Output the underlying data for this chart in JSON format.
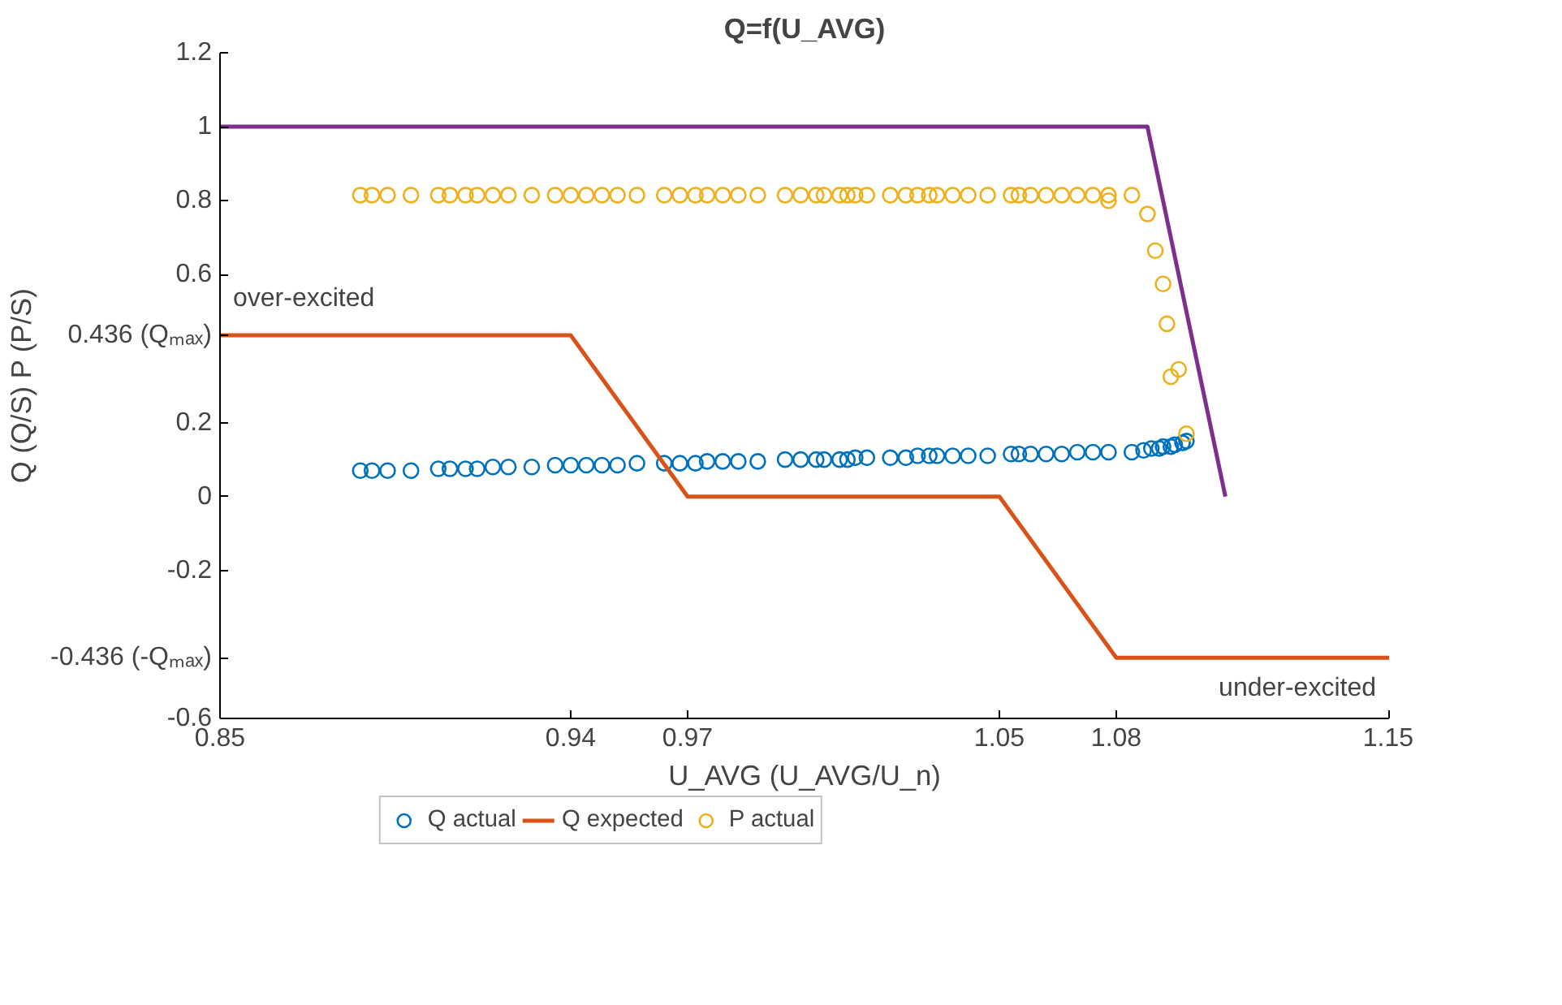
{
  "chart_data": {
    "type": "scatter",
    "title": "Q=f(U_AVG)",
    "xlabel": "U_AVG (U_AVG/U_n)",
    "ylabel": "Q (Q/S) P (P/S)",
    "xlim": [
      0.85,
      1.15
    ],
    "xticks": [
      0.85,
      0.94,
      0.97,
      1.05,
      1.08,
      1.15
    ],
    "ylim": [
      -0.6,
      1.2
    ],
    "yticks": [
      -0.6,
      {
        "value": -0.436,
        "label": "-0.436 (-Qₘₐₓ)"
      },
      -0.2,
      0,
      0.2,
      {
        "value": 0.436,
        "label": "0.436 (Qₘₐₓ)"
      },
      0.6,
      0.8,
      1,
      1.2
    ],
    "grid": false,
    "legend": "bottom",
    "annotations": [
      "over-excited",
      "under-excited"
    ],
    "series": [
      {
        "name": "Q actual",
        "marker": "circle",
        "color": "#0072bd",
        "x": [
          0.886,
          0.889,
          0.893,
          0.899,
          0.906,
          0.909,
          0.913,
          0.916,
          0.92,
          0.924,
          0.93,
          0.936,
          0.94,
          0.944,
          0.948,
          0.952,
          0.957,
          0.964,
          0.968,
          0.972,
          0.975,
          0.979,
          0.983,
          0.988,
          0.995,
          0.999,
          1.003,
          1.005,
          1.009,
          1.011,
          1.013,
          1.016,
          1.022,
          1.026,
          1.029,
          1.032,
          1.034,
          1.038,
          1.042,
          1.047,
          1.053,
          1.055,
          1.058,
          1.062,
          1.066,
          1.07,
          1.074,
          1.078,
          1.084,
          1.087,
          1.089,
          1.091,
          1.092,
          1.094,
          1.095,
          1.097,
          1.098
        ],
        "values": [
          0.07,
          0.07,
          0.07,
          0.07,
          0.075,
          0.075,
          0.075,
          0.075,
          0.08,
          0.08,
          0.08,
          0.085,
          0.085,
          0.085,
          0.085,
          0.085,
          0.09,
          0.09,
          0.09,
          0.09,
          0.095,
          0.095,
          0.095,
          0.095,
          0.1,
          0.1,
          0.1,
          0.1,
          0.1,
          0.1,
          0.105,
          0.105,
          0.105,
          0.105,
          0.11,
          0.11,
          0.11,
          0.11,
          0.11,
          0.11,
          0.115,
          0.115,
          0.115,
          0.115,
          0.115,
          0.12,
          0.12,
          0.12,
          0.12,
          0.125,
          0.13,
          0.13,
          0.135,
          0.135,
          0.14,
          0.145,
          0.15
        ]
      },
      {
        "name": "Q expected",
        "type": "line",
        "color": "#d95319",
        "x": [
          0.85,
          0.94,
          0.97,
          1.05,
          1.08,
          1.15
        ],
        "values": [
          0.436,
          0.436,
          0,
          0,
          -0.436,
          -0.436
        ]
      },
      {
        "name": "P actual",
        "marker": "circle",
        "color": "#edb120",
        "x": [
          0.886,
          0.889,
          0.893,
          0.899,
          0.906,
          0.909,
          0.913,
          0.916,
          0.92,
          0.924,
          0.93,
          0.936,
          0.94,
          0.944,
          0.948,
          0.952,
          0.957,
          0.964,
          0.968,
          0.972,
          0.975,
          0.979,
          0.983,
          0.988,
          0.995,
          0.999,
          1.003,
          1.005,
          1.009,
          1.011,
          1.013,
          1.016,
          1.022,
          1.026,
          1.029,
          1.032,
          1.034,
          1.038,
          1.042,
          1.047,
          1.053,
          1.055,
          1.058,
          1.062,
          1.066,
          1.07,
          1.074,
          1.078,
          1.078,
          1.084,
          1.088,
          1.09,
          1.092,
          1.093,
          1.094,
          1.096,
          1.098
        ],
        "values": [
          0.815,
          0.815,
          0.815,
          0.815,
          0.815,
          0.815,
          0.815,
          0.815,
          0.815,
          0.815,
          0.815,
          0.815,
          0.815,
          0.815,
          0.815,
          0.815,
          0.815,
          0.815,
          0.815,
          0.815,
          0.815,
          0.815,
          0.815,
          0.815,
          0.815,
          0.815,
          0.815,
          0.815,
          0.815,
          0.815,
          0.815,
          0.815,
          0.815,
          0.815,
          0.815,
          0.815,
          0.815,
          0.815,
          0.815,
          0.815,
          0.815,
          0.815,
          0.815,
          0.815,
          0.815,
          0.815,
          0.815,
          0.815,
          0.8,
          0.815,
          0.764,
          0.665,
          0.575,
          0.467,
          0.324,
          0.344,
          0.17
        ]
      },
      {
        "type": "line",
        "color": "#7e2f8e",
        "x": [
          0.85,
          1.088,
          1.108
        ],
        "values": [
          1,
          1,
          0
        ]
      }
    ]
  }
}
